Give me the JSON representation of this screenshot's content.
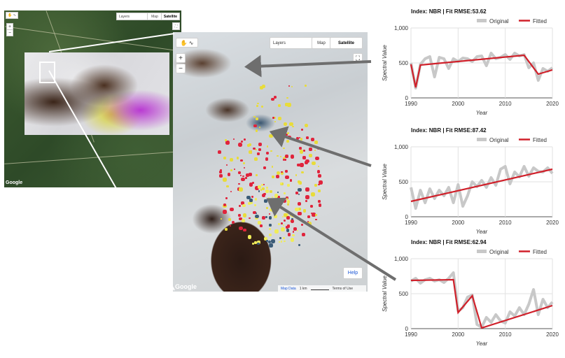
{
  "overview_map": {
    "layers_label": "Layers",
    "map_label": "Map",
    "satellite_label": "Satellite",
    "google_label": "Google"
  },
  "zoom_map": {
    "layers_label": "Layers",
    "map_label": "Map",
    "satellite_label": "Satellite",
    "google_label": "Google",
    "help_label": "Help",
    "map_data_label": "Map Data",
    "scale_label": "1 km",
    "terms_label": "Terms of Use"
  },
  "legend": {
    "original_label": "Original",
    "fitted_label": "Fitted"
  },
  "colors": {
    "original": "#c8c8c8",
    "fitted": "#d0202a",
    "arrow": "#6e6e6e"
  },
  "chart_data": [
    {
      "type": "line",
      "title": "Index: NBR | Fit RMSE:53.62",
      "xlabel": "Year",
      "ylabel": "Spectral Value",
      "xlim": [
        1990,
        2020
      ],
      "ylim": [
        0,
        1000
      ],
      "x_ticks": [
        "1990",
        "2000",
        "2010",
        "2020"
      ],
      "y_ticks": [
        "0",
        "500",
        "1,000"
      ],
      "series": [
        {
          "name": "Original",
          "x": [
            1990,
            1991,
            1992,
            1993,
            1994,
            1995,
            1996,
            1997,
            1998,
            1999,
            2000,
            2001,
            2002,
            2003,
            2004,
            2005,
            2006,
            2007,
            2008,
            2009,
            2010,
            2011,
            2012,
            2013,
            2014,
            2015,
            2016,
            2017,
            2018,
            2019,
            2020
          ],
          "y": [
            500,
            140,
            480,
            560,
            590,
            300,
            580,
            560,
            420,
            560,
            520,
            570,
            560,
            520,
            590,
            600,
            460,
            640,
            560,
            580,
            620,
            550,
            640,
            600,
            620,
            430,
            500,
            250,
            420,
            380,
            430
          ]
        },
        {
          "name": "Fitted",
          "x": [
            1990,
            1991,
            1992,
            2014,
            2017,
            2020
          ],
          "y": [
            480,
            150,
            470,
            610,
            340,
            400
          ]
        }
      ]
    },
    {
      "type": "line",
      "title": "Index: NBR | Fit RMSE:87.42",
      "xlabel": "Year",
      "ylabel": "Spectral Value",
      "xlim": [
        1990,
        2020
      ],
      "ylim": [
        0,
        1000
      ],
      "x_ticks": [
        "1990",
        "2000",
        "2010",
        "2020"
      ],
      "y_ticks": [
        "0",
        "500",
        "1,000"
      ],
      "series": [
        {
          "name": "Original",
          "x": [
            1990,
            1991,
            1992,
            1993,
            1994,
            1995,
            1996,
            1997,
            1998,
            1999,
            2000,
            2001,
            2002,
            2003,
            2004,
            2005,
            2006,
            2007,
            2008,
            2009,
            2010,
            2011,
            2012,
            2013,
            2014,
            2015,
            2016,
            2017,
            2018,
            2019,
            2020
          ],
          "y": [
            420,
            120,
            380,
            200,
            400,
            260,
            380,
            300,
            420,
            200,
            460,
            150,
            300,
            500,
            430,
            520,
            420,
            560,
            450,
            680,
            720,
            470,
            640,
            570,
            720,
            580,
            700,
            650,
            640,
            700,
            620
          ]
        },
        {
          "name": "Fitted",
          "x": [
            1990,
            2020
          ],
          "y": [
            220,
            680
          ]
        }
      ]
    },
    {
      "type": "line",
      "title": "Index: NBR | Fit RMSE:62.94",
      "xlabel": "Year",
      "ylabel": "Spectral Value",
      "xlim": [
        1990,
        2020
      ],
      "ylim": [
        0,
        1000
      ],
      "x_ticks": [
        "1990",
        "2000",
        "2010",
        "2020"
      ],
      "y_ticks": [
        "0",
        "500",
        "1,000"
      ],
      "series": [
        {
          "name": "Original",
          "x": [
            1990,
            1991,
            1992,
            1993,
            1994,
            1995,
            1996,
            1997,
            1998,
            1999,
            2000,
            2001,
            2002,
            2003,
            2004,
            2005,
            2006,
            2007,
            2008,
            2009,
            2010,
            2011,
            2012,
            2013,
            2014,
            2015,
            2016,
            2017,
            2018,
            2019,
            2020
          ],
          "y": [
            680,
            720,
            650,
            700,
            720,
            680,
            700,
            660,
            720,
            800,
            250,
            300,
            450,
            480,
            60,
            20,
            160,
            90,
            200,
            110,
            80,
            240,
            180,
            300,
            200,
            350,
            560,
            200,
            420,
            300,
            380
          ]
        },
        {
          "name": "Fitted",
          "x": [
            1990,
            1999,
            2000,
            2003,
            2005,
            2020
          ],
          "y": [
            690,
            700,
            230,
            470,
            10,
            330
          ]
        }
      ]
    }
  ]
}
